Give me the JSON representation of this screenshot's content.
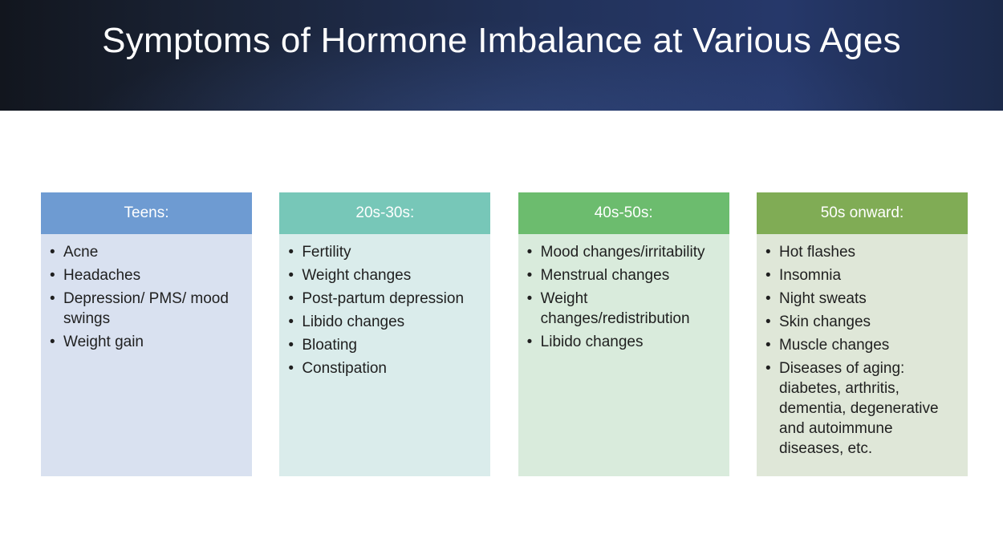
{
  "slide": {
    "title": "Symptoms of Hormone Imbalance at Various Ages"
  },
  "colors": {
    "banner": "#1f2d52",
    "teens_header": "#6e9bd2",
    "teens_body": "#d9e1f0",
    "twenties_header": "#77c7b8",
    "twenties_body": "#daeceb",
    "forties_header": "#6cbc6e",
    "forties_body": "#d9ebdc",
    "fifties_header": "#80ac55",
    "fifties_body": "#dfe7d8"
  },
  "columns": [
    {
      "header": "Teens:",
      "items": [
        "Acne",
        "Headaches",
        "Depression/ PMS/ mood swings",
        "Weight gain"
      ]
    },
    {
      "header": "20s-30s:",
      "items": [
        "Fertility",
        "Weight changes",
        "Post-partum depression",
        "Libido changes",
        "Bloating",
        "Constipation"
      ]
    },
    {
      "header": "40s-50s:",
      "items": [
        "Mood changes/irritability",
        "Menstrual changes",
        "Weight changes/redistribution",
        "Libido changes"
      ]
    },
    {
      "header": "50s onward:",
      "items": [
        "Hot flashes",
        "Insomnia",
        "Night sweats",
        "Skin changes",
        "Muscle changes",
        "Diseases of aging: diabetes, arthritis, dementia, degenerative and autoimmune diseases, etc."
      ]
    }
  ]
}
